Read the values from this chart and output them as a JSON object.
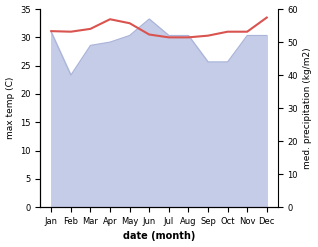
{
  "months": [
    "Jan",
    "Feb",
    "Mar",
    "Apr",
    "May",
    "Jun",
    "Jul",
    "Aug",
    "Sep",
    "Oct",
    "Nov",
    "Dec"
  ],
  "temperature": [
    31.1,
    31.0,
    31.5,
    33.2,
    32.5,
    30.5,
    30.0,
    30.0,
    30.3,
    31.0,
    31.0,
    33.5
  ],
  "precipitation": [
    53,
    40,
    49,
    50,
    52,
    57,
    52,
    52,
    44,
    44,
    52,
    52
  ],
  "temp_color": "#d9534f",
  "precip_fill_color": "#c5cce8",
  "precip_line_color": "#aab4d8",
  "ylabel_left": "max temp (C)",
  "ylabel_right": "med. precipitation (kg/m2)",
  "xlabel": "date (month)",
  "ylim_left": [
    0,
    35
  ],
  "ylim_right": [
    0,
    60
  ],
  "yticks_left": [
    0,
    5,
    10,
    15,
    20,
    25,
    30,
    35
  ],
  "yticks_right": [
    0,
    10,
    20,
    30,
    40,
    50,
    60
  ],
  "bg_color": "#ffffff",
  "temp_linewidth": 1.5,
  "precip_linewidth": 0.8
}
